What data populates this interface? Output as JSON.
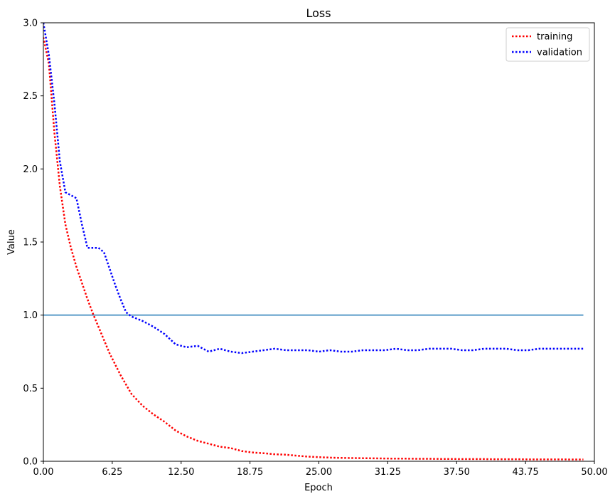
{
  "chart_data": {
    "type": "line",
    "title": "Loss",
    "xlabel": "Epoch",
    "ylabel": "Value",
    "xlim": [
      0,
      50
    ],
    "ylim": [
      0,
      3.0
    ],
    "xticks": [
      "0.00",
      "6.25",
      "12.50",
      "18.75",
      "25.00",
      "31.25",
      "37.50",
      "43.75",
      "50.00"
    ],
    "yticks": [
      "0.0",
      "0.5",
      "1.0",
      "1.5",
      "2.0",
      "2.5",
      "3.0"
    ],
    "xtick_values": [
      0,
      6.25,
      12.5,
      18.75,
      25,
      31.25,
      37.5,
      43.75,
      50
    ],
    "ytick_values": [
      0,
      0.5,
      1.0,
      1.5,
      2.0,
      2.5,
      3.0
    ],
    "grid": false,
    "legend_position": "top-right",
    "reference_line": {
      "y": 1.0,
      "x_range": [
        0,
        49
      ],
      "color": "#1f77b4"
    },
    "series": [
      {
        "name": "training",
        "color": "#ff0000",
        "style": "dotted",
        "x": [
          0,
          0.5,
          1,
          1.5,
          2,
          2.5,
          3,
          3.5,
          4,
          4.5,
          5,
          6,
          7,
          8,
          9,
          10,
          11,
          12,
          13,
          14,
          15,
          16,
          17,
          18,
          19,
          20,
          21,
          22,
          23,
          24,
          25,
          26,
          27,
          28,
          29,
          30,
          31,
          32,
          33,
          34,
          35,
          36,
          37,
          38,
          39,
          40,
          41,
          42,
          43,
          44,
          45,
          46,
          47,
          48,
          49
        ],
        "y": [
          2.9,
          2.72,
          2.25,
          1.88,
          1.62,
          1.46,
          1.33,
          1.22,
          1.11,
          1.01,
          0.92,
          0.74,
          0.59,
          0.46,
          0.38,
          0.32,
          0.27,
          0.21,
          0.17,
          0.14,
          0.12,
          0.1,
          0.09,
          0.07,
          0.06,
          0.055,
          0.048,
          0.045,
          0.038,
          0.032,
          0.028,
          0.025,
          0.023,
          0.022,
          0.021,
          0.02,
          0.019,
          0.018,
          0.018,
          0.017,
          0.017,
          0.016,
          0.016,
          0.015,
          0.015,
          0.015,
          0.014,
          0.014,
          0.014,
          0.013,
          0.013,
          0.013,
          0.013,
          0.012,
          0.012
        ]
      },
      {
        "name": "validation",
        "color": "#0000ff",
        "style": "dotted",
        "x": [
          0,
          0.5,
          1,
          1.5,
          2,
          2.5,
          3,
          3.5,
          4,
          4.5,
          5,
          5.5,
          6,
          6.5,
          7,
          7.5,
          8,
          9,
          10,
          11,
          12,
          13,
          14,
          15,
          16,
          17,
          18,
          19,
          20,
          21,
          22,
          23,
          24,
          25,
          26,
          27,
          28,
          29,
          30,
          31,
          32,
          33,
          34,
          35,
          36,
          37,
          38,
          39,
          40,
          41,
          42,
          43,
          44,
          45,
          46,
          47,
          48,
          49
        ],
        "y": [
          3.0,
          2.78,
          2.45,
          2.05,
          1.84,
          1.82,
          1.8,
          1.62,
          1.46,
          1.46,
          1.46,
          1.43,
          1.32,
          1.21,
          1.11,
          1.02,
          0.99,
          0.96,
          0.92,
          0.87,
          0.8,
          0.78,
          0.79,
          0.75,
          0.77,
          0.75,
          0.74,
          0.75,
          0.76,
          0.77,
          0.76,
          0.76,
          0.76,
          0.75,
          0.76,
          0.75,
          0.75,
          0.76,
          0.76,
          0.76,
          0.77,
          0.76,
          0.76,
          0.77,
          0.77,
          0.77,
          0.76,
          0.76,
          0.77,
          0.77,
          0.77,
          0.76,
          0.76,
          0.77,
          0.77,
          0.77,
          0.77,
          0.77
        ]
      }
    ]
  }
}
